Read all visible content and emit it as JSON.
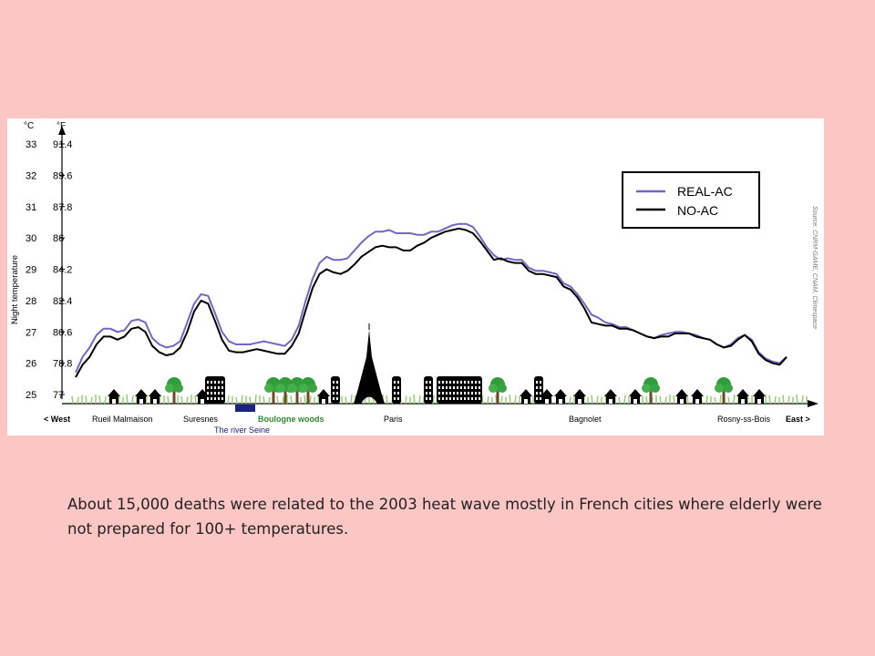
{
  "chart_data": {
    "type": "line",
    "ylabel": "Night temperature",
    "unit_c": "°C",
    "unit_f": "°F",
    "ylim": [
      25,
      33
    ],
    "yticks_c": [
      "25",
      "26",
      "27",
      "28",
      "29",
      "30",
      "31",
      "32",
      "33"
    ],
    "yticks_f": [
      "77",
      "78.8",
      "80.6",
      "82.4",
      "84.2",
      "86",
      "87.8",
      "89.6",
      "91.4"
    ],
    "x_left": "< West",
    "x_right": "East >",
    "places": [
      "Rueil Malmaison",
      "Suresnes",
      "Boulogne woods",
      "Paris",
      "Bagnolet",
      "Rosny-ss-Bois"
    ],
    "river_label": "The river Seine",
    "source": "Source: CNRM-GAME, CNAM, Climespace",
    "series": [
      {
        "name": "REAL-AC",
        "color": "#7466c2",
        "values": [
          25.7,
          26.2,
          26.5,
          26.9,
          27.1,
          27.1,
          27.0,
          27.05,
          27.35,
          27.4,
          27.3,
          26.8,
          26.6,
          26.5,
          26.55,
          26.7,
          27.3,
          27.9,
          28.2,
          28.15,
          27.6,
          27.0,
          26.7,
          26.6,
          26.6,
          26.6,
          26.65,
          26.7,
          26.65,
          26.6,
          26.55,
          26.75,
          27.2,
          28.0,
          28.7,
          29.2,
          29.4,
          29.3,
          29.3,
          29.35,
          29.6,
          29.85,
          30.05,
          30.2,
          30.2,
          30.25,
          30.15,
          30.15,
          30.15,
          30.1,
          30.1,
          30.2,
          30.2,
          30.3,
          30.4,
          30.45,
          30.45,
          30.35,
          30.05,
          29.7,
          29.45,
          29.3,
          29.35,
          29.3,
          29.3,
          29.05,
          28.95,
          28.95,
          28.9,
          28.85,
          28.55,
          28.45,
          28.2,
          27.9,
          27.55,
          27.45,
          27.3,
          27.25,
          27.15,
          27.15,
          27.05,
          26.95,
          26.85,
          26.8,
          26.9,
          26.95,
          27.0,
          27.0,
          26.95,
          26.9,
          26.8,
          26.75,
          26.6,
          26.5,
          26.6,
          26.8,
          26.9,
          26.75,
          26.35,
          26.15,
          26.05,
          26.0,
          26.2
        ],
        "color_hex": "#7466c2"
      },
      {
        "name": "NO-AC",
        "color": "#000000",
        "values": [
          25.55,
          25.95,
          26.2,
          26.6,
          26.85,
          26.85,
          26.75,
          26.85,
          27.1,
          27.15,
          27.0,
          26.55,
          26.35,
          26.25,
          26.3,
          26.5,
          27.0,
          27.65,
          28.0,
          27.9,
          27.35,
          26.75,
          26.4,
          26.35,
          26.35,
          26.4,
          26.45,
          26.4,
          26.35,
          26.3,
          26.3,
          26.55,
          26.95,
          27.7,
          28.4,
          28.85,
          29.0,
          28.9,
          28.85,
          28.95,
          29.15,
          29.4,
          29.55,
          29.7,
          29.75,
          29.7,
          29.7,
          29.6,
          29.6,
          29.75,
          29.85,
          30.0,
          30.1,
          30.2,
          30.25,
          30.3,
          30.25,
          30.15,
          29.9,
          29.6,
          29.3,
          29.35,
          29.25,
          29.2,
          29.2,
          28.95,
          28.85,
          28.85,
          28.8,
          28.75,
          28.45,
          28.35,
          28.1,
          27.75,
          27.3,
          27.25,
          27.2,
          27.2,
          27.1,
          27.1,
          27.05,
          26.95,
          26.85,
          26.8,
          26.85,
          26.85,
          26.95,
          26.95,
          26.95,
          26.85,
          26.8,
          26.75,
          26.6,
          26.5,
          26.55,
          26.75,
          26.9,
          26.7,
          26.3,
          26.1,
          26.0,
          25.95,
          26.2
        ]
      }
    ]
  },
  "caption": "About 15,000 deaths were related to the 2003 heat wave mostly in French cities where elderly were not prepared for 100+ temperatures."
}
